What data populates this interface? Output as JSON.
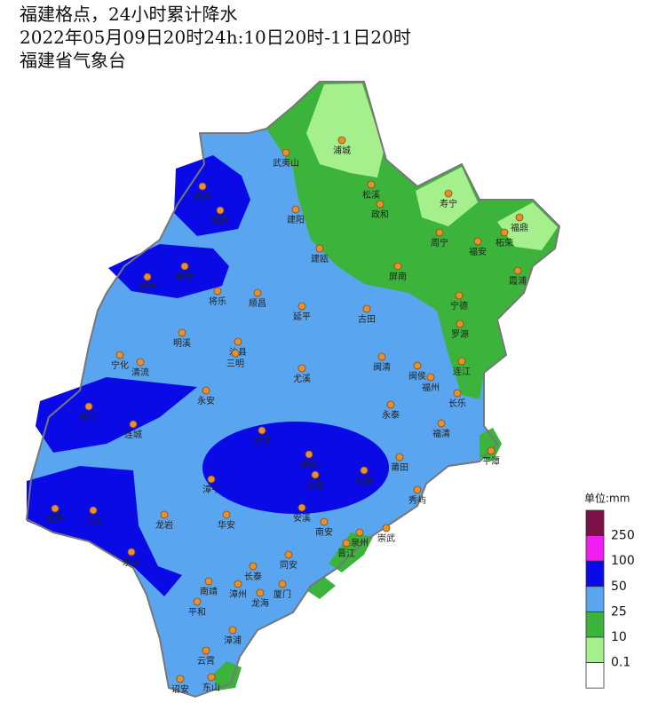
{
  "header": {
    "lines": [
      "福建格点，24小时累计降水",
      "2022年05月09日20时24h:10日20时-11日20时",
      "福建省气象台"
    ]
  },
  "cities": [
    {
      "name": "浦城"
    },
    {
      "name": "武夷山"
    },
    {
      "name": "光泽"
    },
    {
      "name": "邵武"
    },
    {
      "name": "松溪"
    },
    {
      "name": "政和"
    },
    {
      "name": "寿宁"
    },
    {
      "name": "福鼎"
    },
    {
      "name": "建阳"
    },
    {
      "name": "周宁"
    },
    {
      "name": "柘荣"
    },
    {
      "name": "福安"
    },
    {
      "name": "建瓯"
    },
    {
      "name": "泰宁"
    },
    {
      "name": "建宁"
    },
    {
      "name": "屏南"
    },
    {
      "name": "霞浦"
    },
    {
      "name": "将乐"
    },
    {
      "name": "顺昌"
    },
    {
      "name": "延平"
    },
    {
      "name": "古田"
    },
    {
      "name": "宁德"
    },
    {
      "name": "罗源"
    },
    {
      "name": "明溪"
    },
    {
      "name": "沙县"
    },
    {
      "name": "三明"
    },
    {
      "name": "宁化"
    },
    {
      "name": "清流"
    },
    {
      "name": "尤溪"
    },
    {
      "name": "闽清"
    },
    {
      "name": "闽侯"
    },
    {
      "name": "连江"
    },
    {
      "name": "福州"
    },
    {
      "name": "永安"
    },
    {
      "name": "长乐"
    },
    {
      "name": "长汀"
    },
    {
      "name": "连城"
    },
    {
      "name": "永泰"
    },
    {
      "name": "福清"
    },
    {
      "name": "平潭"
    },
    {
      "name": "大田"
    },
    {
      "name": "德化"
    },
    {
      "name": "永春"
    },
    {
      "name": "仙游"
    },
    {
      "name": "莆田"
    },
    {
      "name": "漳平"
    },
    {
      "name": "秀屿"
    },
    {
      "name": "武平"
    },
    {
      "name": "上杭"
    },
    {
      "name": "龙岩"
    },
    {
      "name": "华安"
    },
    {
      "name": "安溪"
    },
    {
      "name": "南安"
    },
    {
      "name": "泉州"
    },
    {
      "name": "崇武"
    },
    {
      "name": "晋江"
    },
    {
      "name": "永定"
    },
    {
      "name": "同安"
    },
    {
      "name": "长泰"
    },
    {
      "name": "南靖"
    },
    {
      "name": "漳州"
    },
    {
      "name": "龙海"
    },
    {
      "name": "厦门"
    },
    {
      "name": "平和"
    },
    {
      "name": "漳浦"
    },
    {
      "name": "云霄"
    },
    {
      "name": "诏安"
    },
    {
      "name": "东山"
    }
  ],
  "legend": {
    "unit": "单位:mm",
    "labels": [
      250,
      100,
      50,
      25,
      10,
      0.1
    ],
    "colors": [
      "#7d1046",
      "#f01ef0",
      "#0a0ae6",
      "#5aa5f0",
      "#3cb43c",
      "#a5f08c",
      "#ffffff"
    ]
  }
}
